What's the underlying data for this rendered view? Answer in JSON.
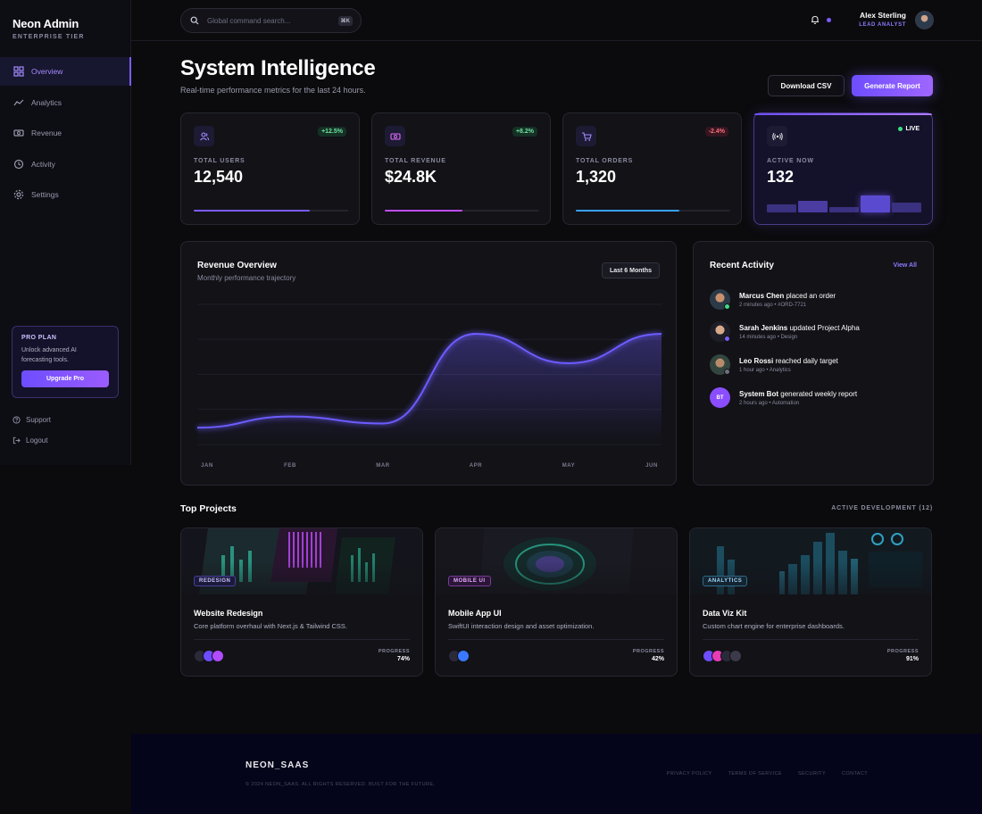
{
  "brand": {
    "name": "Neon Admin",
    "tier": "ENTERPRISE TIER"
  },
  "sidebar": {
    "items": [
      {
        "label": "Overview",
        "icon": "grid-icon",
        "active": true
      },
      {
        "label": "Analytics",
        "icon": "trend-icon"
      },
      {
        "label": "Revenue",
        "icon": "money-icon"
      },
      {
        "label": "Activity",
        "icon": "history-icon"
      },
      {
        "label": "Settings",
        "icon": "gear-icon"
      }
    ],
    "pro": {
      "title": "PRO PLAN",
      "desc": "Unlock advanced AI forecasting tools.",
      "button": "Upgrade Pro"
    },
    "support": "Support",
    "logout": "Logout"
  },
  "header": {
    "search_placeholder": "Global command search...",
    "shortcut": "⌘K",
    "user_name": "Alex Sterling",
    "user_role": "LEAD ANALYST"
  },
  "page": {
    "title": "System Intelligence",
    "subtitle": "Real-time performance metrics for the last 24 hours.",
    "download": "Download CSV",
    "generate": "Generate Report"
  },
  "stats": [
    {
      "label": "TOTAL USERS",
      "value": "12,540",
      "change": "+12.5%",
      "progress": 0.75
    },
    {
      "label": "TOTAL REVENUE",
      "value": "$24.8K",
      "change": "+8.2%",
      "progress": 0.5
    },
    {
      "label": "TOTAL ORDERS",
      "value": "1,320",
      "change": "-2.4%",
      "progress": 0.67
    }
  ],
  "live": {
    "label": "ACTIVE NOW",
    "value": "132",
    "badge": "LIVE"
  },
  "revenue": {
    "title": "Revenue Overview",
    "subtitle": "Monthly performance trajectory",
    "range": "Last 6 Months"
  },
  "chart_data": {
    "type": "area",
    "categories": [
      "JAN",
      "FEB",
      "MAR",
      "APR",
      "MAY",
      "JUN"
    ],
    "values": [
      12,
      20,
      15,
      79,
      58,
      79
    ],
    "ylim": [
      0,
      100
    ],
    "grid": true,
    "color": "#6c5cff"
  },
  "activity": {
    "title": "Recent Activity",
    "view_all": "View All",
    "items": [
      {
        "who": "Marcus Chen",
        "action": "placed an order",
        "meta": "2 minutes ago • #ORD-7721"
      },
      {
        "who": "Sarah Jenkins",
        "action": "updated Project Alpha",
        "meta": "14 minutes ago • Design"
      },
      {
        "who": "Leo Rossi",
        "action": "reached daily target",
        "meta": "1 hour ago • Analytics"
      },
      {
        "who": "System Bot",
        "action": "generated weekly report",
        "meta": "2 hours ago • Automation",
        "initials": "BT"
      }
    ]
  },
  "projects": {
    "title": "Top Projects",
    "count": "ACTIVE DEVELOPMENT (12)",
    "progress_label": "PROGRESS",
    "items": [
      {
        "tag": "REDESIGN",
        "name": "Website Redesign",
        "desc": "Core platform overhaul with Next.js & Tailwind CSS.",
        "progress": "74%"
      },
      {
        "tag": "MOBILE UI",
        "name": "Mobile App UI",
        "desc": "SwiftUI interaction design and asset optimization.",
        "progress": "42%"
      },
      {
        "tag": "ANALYTICS",
        "name": "Data Viz Kit",
        "desc": "Custom chart engine for enterprise dashboards.",
        "progress": "91%"
      }
    ]
  },
  "footer": {
    "brand": "NEON_SAAS",
    "copy": "© 2024 NEON_SAAS. ALL RIGHTS RESERVED. BUILT FOR THE FUTURE.",
    "links": [
      "PRIVACY POLICY",
      "TERMS OF SERVICE",
      "SECURITY",
      "CONTACT"
    ]
  }
}
